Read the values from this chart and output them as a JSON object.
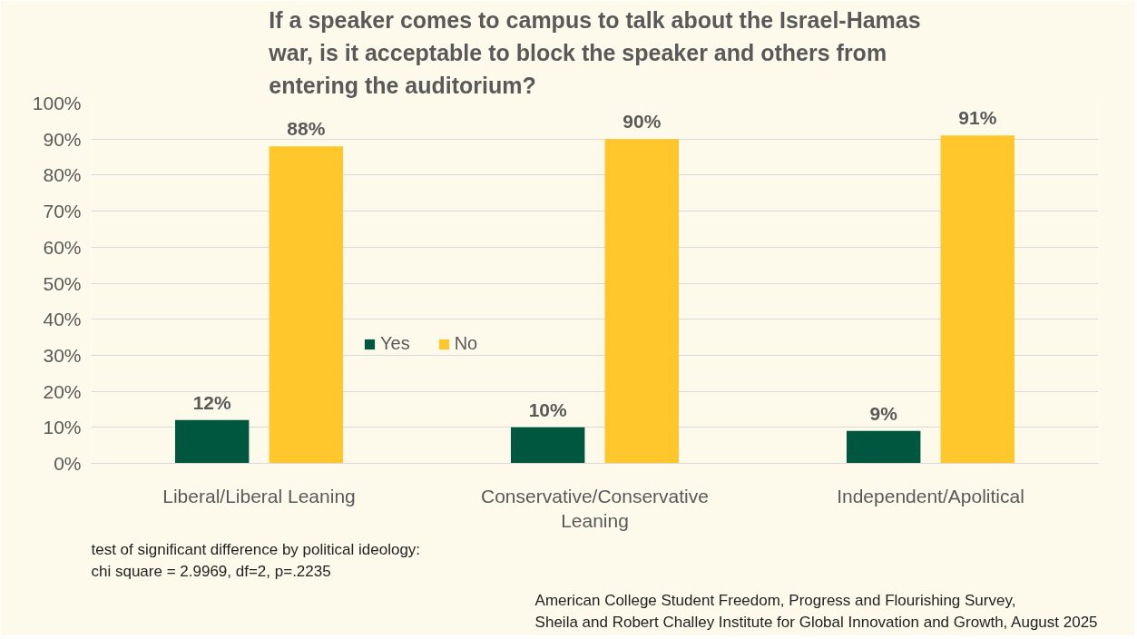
{
  "chart_data": {
    "type": "bar",
    "title": "If a speaker comes to campus to talk about the Israel-Hamas war, is it acceptable to block the speaker and others from entering the auditorium?",
    "categories": [
      "Liberal/Liberal Leaning",
      "Conservative/Conservative Leaning",
      "Independent/Apolitical"
    ],
    "series": [
      {
        "name": "Yes",
        "color": "#00573f",
        "values": [
          12,
          10,
          9
        ],
        "value_labels": [
          "12%",
          "10%",
          "9%"
        ]
      },
      {
        "name": "No",
        "color": "#ffc72c",
        "values": [
          88,
          90,
          91
        ],
        "value_labels": [
          "88%",
          "90%",
          "91%"
        ]
      }
    ],
    "ylim": [
      0,
      100
    ],
    "yticks": [
      {
        "value": 0,
        "label": "0%"
      },
      {
        "value": 10,
        "label": "10%"
      },
      {
        "value": 20,
        "label": "20%"
      },
      {
        "value": 30,
        "label": "30%"
      },
      {
        "value": 40,
        "label": "40%"
      },
      {
        "value": 50,
        "label": "50%"
      },
      {
        "value": 60,
        "label": "60%"
      },
      {
        "value": 70,
        "label": "70%"
      },
      {
        "value": 80,
        "label": "80%"
      },
      {
        "value": 90,
        "label": "90%"
      },
      {
        "value": 100,
        "label": "100%"
      }
    ],
    "grid": "y",
    "legend": "bottom",
    "annotations": [
      "test of significant difference by political ideology:\nchi square = 2.9969, df=2, p=.2235",
      "American College Student Freedom, Progress and Flourishing Survey,\nSheila and Robert Challey Institute for Global Innovation and Growth, August 2025"
    ]
  }
}
